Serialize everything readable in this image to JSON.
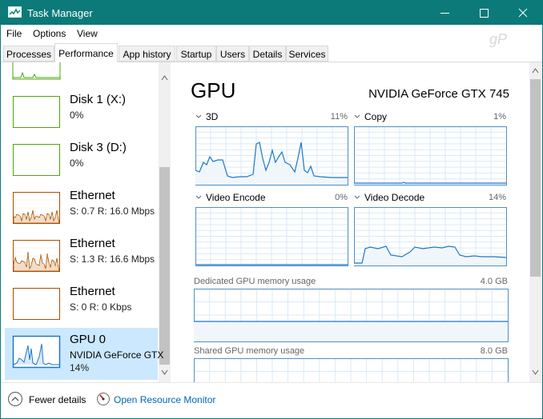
{
  "window": {
    "title": "Task Manager"
  },
  "menu": [
    "File",
    "Options",
    "View"
  ],
  "watermark": "gP",
  "tabs": [
    "Processes",
    "Performance",
    "App history",
    "Startup",
    "Users",
    "Details",
    "Services"
  ],
  "sidebar": [
    {
      "name": "Disk 1 (X:)",
      "detail": "0%"
    },
    {
      "name": "Disk 3 (D:)",
      "detail": "0%"
    },
    {
      "name": "Ethernet",
      "detail": "S: 0.7 R: 16.0 Mbps"
    },
    {
      "name": "Ethernet",
      "detail": "S: 1.3 R: 16.6 Mbps"
    },
    {
      "name": "Ethernet",
      "detail": "S: 0 R: 0 Kbps"
    },
    {
      "name": "GPU 0",
      "subtitle": "NVIDIA GeForce GTX",
      "detail": "14%"
    }
  ],
  "main": {
    "title": "GPU",
    "device": "NVIDIA GeForce GTX 745",
    "engines": [
      {
        "name": "3D",
        "value": "11%"
      },
      {
        "name": "Copy",
        "value": "1%"
      },
      {
        "name": "Video Encode",
        "value": "0%"
      },
      {
        "name": "Video Decode",
        "value": "14%"
      }
    ],
    "memory": [
      {
        "label": "Dedicated GPU memory usage",
        "max": "4.0 GB"
      },
      {
        "label": "Shared GPU memory usage",
        "max": "8.0 GB"
      }
    ]
  },
  "footer": {
    "fewer": "Fewer details",
    "monitor": "Open Resource Monitor"
  }
}
